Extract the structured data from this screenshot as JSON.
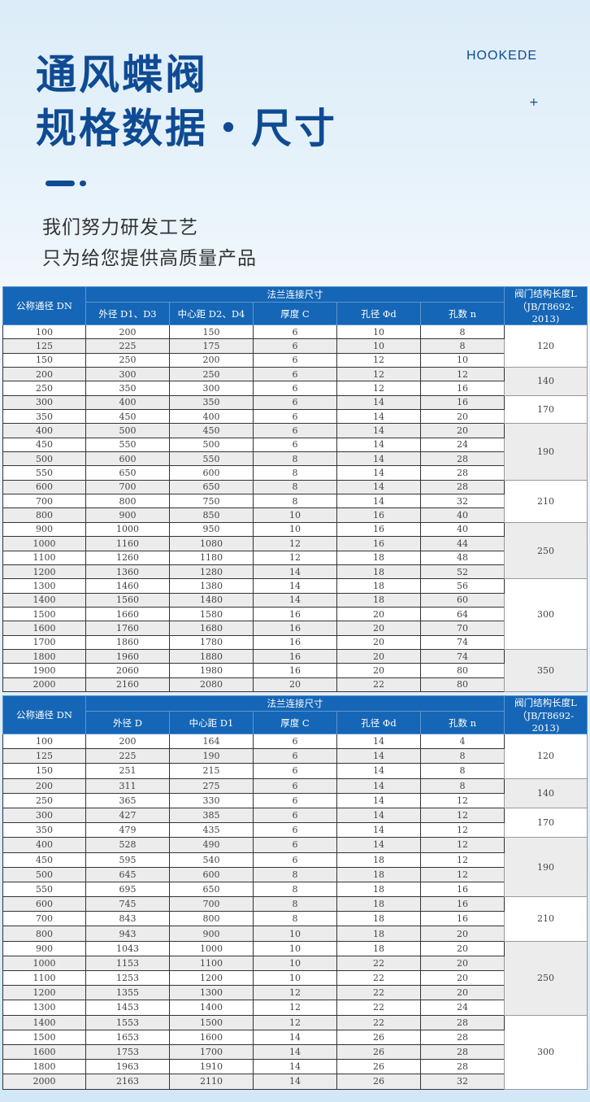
{
  "header": {
    "title_line1": "通风蝶阀",
    "title_line2": "规格数据・尺寸",
    "brand": "HOOKEDE",
    "plus": "+",
    "subtitle_line1": "我们努力研发工艺",
    "subtitle_line2": "只为给您提供高质量产品"
  },
  "colors": {
    "title": "#0f4b93",
    "table_header": "#1566b6",
    "row_shade": "#ececec"
  },
  "tables": [
    {
      "col_dn": "公称通径 DN",
      "group": "法兰连接尺寸",
      "col_l": "阀门结构长度L（JB/T8692-2013)",
      "cols": [
        "外径 D1、D3",
        "中心距 D2、D4",
        "厚度 C",
        "孔径 Φd",
        "孔数 n"
      ],
      "rows": [
        [
          "100",
          "200",
          "150",
          "6",
          "10",
          "8"
        ],
        [
          "125",
          "225",
          "175",
          "6",
          "10",
          "8"
        ],
        [
          "150",
          "250",
          "200",
          "6",
          "12",
          "10"
        ],
        [
          "200",
          "300",
          "250",
          "6",
          "12",
          "12"
        ],
        [
          "250",
          "350",
          "300",
          "6",
          "12",
          "16"
        ],
        [
          "300",
          "400",
          "350",
          "6",
          "14",
          "16"
        ],
        [
          "350",
          "450",
          "400",
          "6",
          "14",
          "20"
        ],
        [
          "400",
          "500",
          "450",
          "6",
          "14",
          "20"
        ],
        [
          "450",
          "550",
          "500",
          "6",
          "14",
          "24"
        ],
        [
          "500",
          "600",
          "550",
          "8",
          "14",
          "28"
        ],
        [
          "550",
          "650",
          "600",
          "8",
          "14",
          "28"
        ],
        [
          "600",
          "700",
          "650",
          "8",
          "14",
          "28"
        ],
        [
          "700",
          "800",
          "750",
          "8",
          "14",
          "32"
        ],
        [
          "800",
          "900",
          "850",
          "10",
          "16",
          "40"
        ],
        [
          "900",
          "1000",
          "950",
          "10",
          "16",
          "40"
        ],
        [
          "1000",
          "1160",
          "1080",
          "12",
          "16",
          "44"
        ],
        [
          "1100",
          "1260",
          "1180",
          "12",
          "18",
          "48"
        ],
        [
          "1200",
          "1360",
          "1280",
          "14",
          "18",
          "52"
        ],
        [
          "1300",
          "1460",
          "1380",
          "14",
          "18",
          "56"
        ],
        [
          "1400",
          "1560",
          "1480",
          "14",
          "18",
          "60"
        ],
        [
          "1500",
          "1660",
          "1580",
          "16",
          "20",
          "64"
        ],
        [
          "1600",
          "1760",
          "1680",
          "16",
          "20",
          "70"
        ],
        [
          "1700",
          "1860",
          "1780",
          "16",
          "20",
          "74"
        ],
        [
          "1800",
          "1960",
          "1880",
          "16",
          "20",
          "74"
        ],
        [
          "1900",
          "2060",
          "1980",
          "16",
          "20",
          "80"
        ],
        [
          "2000",
          "2160",
          "2080",
          "20",
          "22",
          "80"
        ]
      ],
      "L_groups": [
        {
          "value": "120",
          "rows": 3
        },
        {
          "value": "140",
          "rows": 2
        },
        {
          "value": "170",
          "rows": 2
        },
        {
          "value": "190",
          "rows": 4
        },
        {
          "value": "210",
          "rows": 3
        },
        {
          "value": "250",
          "rows": 4
        },
        {
          "value": "300",
          "rows": 5
        },
        {
          "value": "350",
          "rows": 3
        }
      ]
    },
    {
      "col_dn": "公称通径 DN",
      "group": "法兰连接尺寸",
      "col_l": "阀门结构长度L（JB/T8692-2013)",
      "cols": [
        "外径 D",
        "中心距 D1",
        "厚度 C",
        "孔径 Φd",
        "孔数 n"
      ],
      "rows": [
        [
          "100",
          "200",
          "164",
          "6",
          "14",
          "4"
        ],
        [
          "125",
          "225",
          "190",
          "6",
          "14",
          "8"
        ],
        [
          "150",
          "251",
          "215",
          "6",
          "14",
          "8"
        ],
        [
          "200",
          "311",
          "275",
          "6",
          "14",
          "8"
        ],
        [
          "250",
          "365",
          "330",
          "6",
          "14",
          "12"
        ],
        [
          "300",
          "427",
          "385",
          "6",
          "14",
          "12"
        ],
        [
          "350",
          "479",
          "435",
          "6",
          "14",
          "12"
        ],
        [
          "400",
          "528",
          "490",
          "6",
          "14",
          "12"
        ],
        [
          "450",
          "595",
          "540",
          "6",
          "18",
          "12"
        ],
        [
          "500",
          "645",
          "600",
          "8",
          "18",
          "12"
        ],
        [
          "550",
          "695",
          "650",
          "8",
          "18",
          "16"
        ],
        [
          "600",
          "745",
          "700",
          "8",
          "18",
          "16"
        ],
        [
          "700",
          "843",
          "800",
          "8",
          "18",
          "16"
        ],
        [
          "800",
          "943",
          "900",
          "10",
          "18",
          "20"
        ],
        [
          "900",
          "1043",
          "1000",
          "10",
          "18",
          "20"
        ],
        [
          "1000",
          "1153",
          "1100",
          "10",
          "22",
          "20"
        ],
        [
          "1100",
          "1253",
          "1200",
          "10",
          "22",
          "20"
        ],
        [
          "1200",
          "1355",
          "1300",
          "12",
          "22",
          "20"
        ],
        [
          "1300",
          "1453",
          "1400",
          "12",
          "22",
          "24"
        ],
        [
          "1400",
          "1553",
          "1500",
          "12",
          "22",
          "28"
        ],
        [
          "1500",
          "1653",
          "1600",
          "14",
          "26",
          "28"
        ],
        [
          "1600",
          "1753",
          "1700",
          "14",
          "26",
          "28"
        ],
        [
          "1800",
          "1963",
          "1910",
          "14",
          "26",
          "28"
        ],
        [
          "2000",
          "2163",
          "2110",
          "14",
          "26",
          "32"
        ]
      ],
      "L_groups": [
        {
          "value": "120",
          "rows": 3
        },
        {
          "value": "140",
          "rows": 2
        },
        {
          "value": "170",
          "rows": 2
        },
        {
          "value": "190",
          "rows": 4
        },
        {
          "value": "210",
          "rows": 3
        },
        {
          "value": "250",
          "rows": 5
        },
        {
          "value": "300",
          "rows": 5
        }
      ]
    }
  ]
}
